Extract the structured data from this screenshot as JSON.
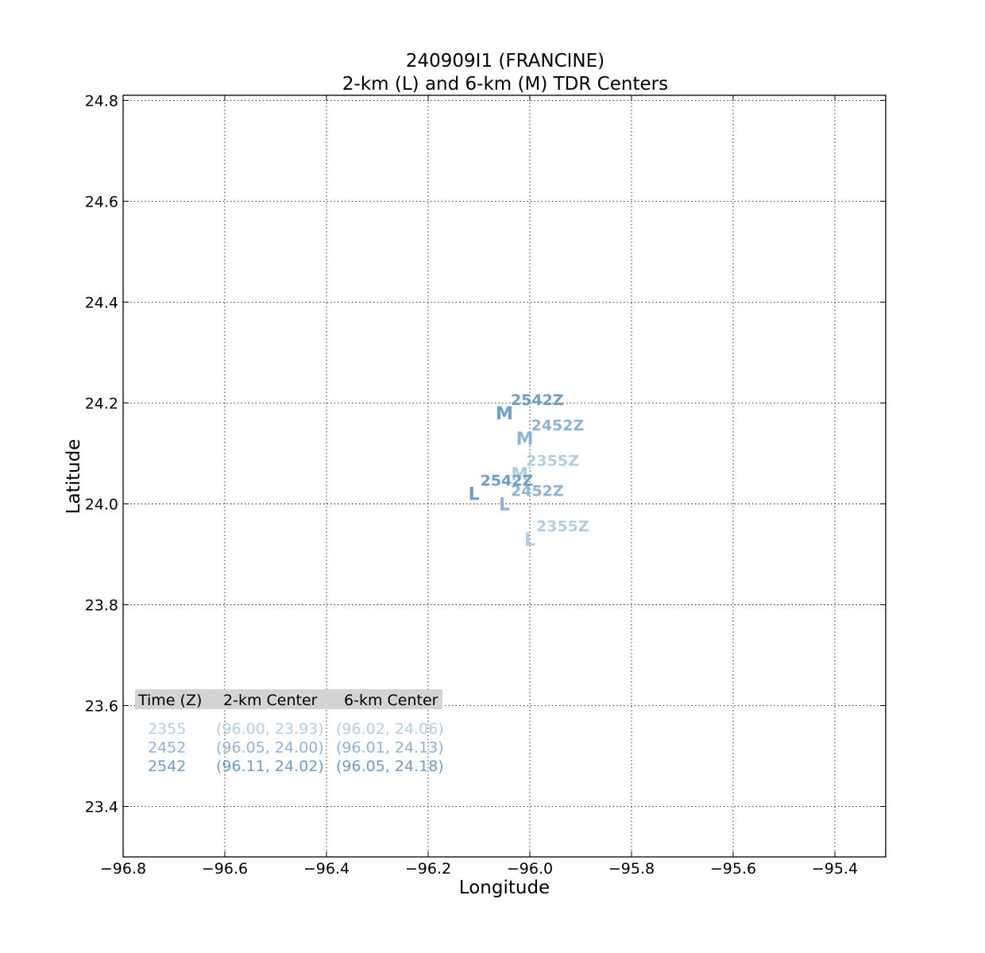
{
  "chart_data": {
    "type": "scatter",
    "title": "240909I1 (FRANCINE)",
    "subtitle": "2-km (L) and 6-km (M) TDR Centers",
    "xlabel": "Longitude",
    "ylabel": "Latitude",
    "xlim": [
      -96.8,
      -95.3
    ],
    "ylim": [
      23.3,
      24.81
    ],
    "xticks": [
      -96.8,
      -96.6,
      -96.4,
      -96.2,
      -96.0,
      -95.8,
      -95.6,
      -95.4
    ],
    "xtick_labels": [
      "−96.8",
      "−96.6",
      "−96.4",
      "−96.2",
      "−96.0",
      "−95.8",
      "−95.6",
      "−95.4"
    ],
    "yticks": [
      23.4,
      23.6,
      23.8,
      24.0,
      24.2,
      24.4,
      24.6,
      24.8
    ],
    "ytick_labels": [
      "23.4",
      "23.6",
      "23.8",
      "24.0",
      "24.2",
      "24.4",
      "24.6",
      "24.8"
    ],
    "grid": true,
    "level_markers": {
      "low": "L",
      "mid": "M"
    },
    "time_suffix": "Z",
    "points": [
      {
        "time": "2355",
        "low": {
          "x": -96.0,
          "y": 23.93
        },
        "mid": {
          "x": -96.02,
          "y": 24.06
        },
        "color": "#b3cde3"
      },
      {
        "time": "2452",
        "low": {
          "x": -96.05,
          "y": 24.0
        },
        "mid": {
          "x": -96.01,
          "y": 24.13
        },
        "color": "#8db3d9"
      },
      {
        "time": "2542",
        "low": {
          "x": -96.11,
          "y": 24.02
        },
        "mid": {
          "x": -96.05,
          "y": 24.18
        },
        "color": "#6a9fcb"
      }
    ],
    "table": {
      "headers": [
        "Time (Z)",
        "2-km Center",
        "6-km Center"
      ],
      "header_bg": "#d3d3d3",
      "rows": [
        {
          "time": "2355",
          "low": "(96.00, 23.93)",
          "mid": "(96.02, 24.06)",
          "color": "#b3cde3"
        },
        {
          "time": "2452",
          "low": "(96.05, 24.00)",
          "mid": "(96.01, 24.13)",
          "color": "#8db3d9"
        },
        {
          "time": "2542",
          "low": "(96.11, 24.02)",
          "mid": "(96.05, 24.18)",
          "color": "#6a9fcb"
        }
      ]
    }
  }
}
